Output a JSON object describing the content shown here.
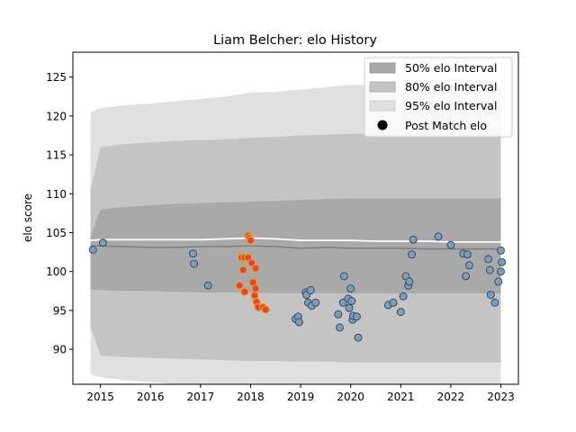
{
  "chart_data": {
    "type": "scatter",
    "title": "Liam Belcher: elo History",
    "xlabel": "",
    "ylabel": "elo score",
    "xlim": [
      2014.45,
      2023.35
    ],
    "ylim": [
      85.5,
      128.2
    ],
    "x_ticks": [
      2015,
      2016,
      2017,
      2018,
      2019,
      2020,
      2021,
      2022,
      2023
    ],
    "y_ticks": [
      90,
      95,
      100,
      105,
      110,
      115,
      120,
      125
    ],
    "grid": false,
    "legend": {
      "position": "top-right",
      "entries": [
        "50% elo Interval",
        "80% elo Interval",
        "95% elo Interval",
        "Post Match elo"
      ]
    },
    "colors": {
      "band50": "#a9a9a9",
      "band80": "#c4c4c4",
      "band95": "#e0e0e0",
      "median_line": "#808080",
      "mean_line": "#ffffff",
      "point_fill": "#7a9ebb",
      "point_edge": "#3b4d5c",
      "highlight_fill": "#e8413a",
      "highlight_edge": "#e8a317"
    },
    "bands": {
      "x": [
        2014.8,
        2015.0,
        2015.5,
        2016.0,
        2016.5,
        2017.0,
        2017.5,
        2018.0,
        2018.5,
        2019.0,
        2019.5,
        2020.0,
        2020.5,
        2021.0,
        2021.5,
        2022.0,
        2022.5,
        2023.0
      ],
      "p95_upper": [
        120.5,
        121.0,
        121.4,
        121.6,
        121.9,
        122.2,
        122.5,
        123.0,
        123.1,
        123.4,
        123.7,
        124.0,
        124.0,
        123.9,
        124.0,
        124.0,
        124.0,
        124.0
      ],
      "p95_lower": [
        86.8,
        86.4,
        86.0,
        85.8,
        85.5,
        85.4,
        85.2,
        85.0,
        84.9,
        84.8,
        84.7,
        84.6,
        84.6,
        84.5,
        84.6,
        84.6,
        84.6,
        84.6
      ],
      "p80_upper": [
        110.5,
        116.0,
        116.4,
        116.6,
        116.8,
        116.9,
        117.0,
        117.2,
        117.3,
        117.5,
        117.6,
        117.7,
        117.7,
        117.7,
        117.7,
        117.7,
        117.7,
        117.7
      ],
      "p80_lower": [
        93.0,
        89.2,
        89.0,
        88.9,
        88.8,
        88.7,
        88.6,
        88.5,
        88.5,
        88.4,
        88.4,
        88.3,
        88.3,
        88.3,
        88.3,
        88.3,
        88.3,
        88.3
      ],
      "p50_upper": [
        104.5,
        108.0,
        108.3,
        108.5,
        108.7,
        108.8,
        108.9,
        109.0,
        109.1,
        109.2,
        109.3,
        109.4,
        109.4,
        109.4,
        109.4,
        109.4,
        109.4,
        109.4
      ],
      "p50_lower": [
        97.7,
        97.6,
        97.5,
        97.5,
        97.4,
        97.3,
        97.3,
        97.3,
        97.2,
        97.2,
        97.2,
        97.2,
        97.2,
        97.2,
        97.2,
        97.2,
        97.2,
        97.2
      ],
      "median": [
        103.3,
        103.3,
        103.2,
        103.1,
        103.1,
        103.2,
        103.2,
        103.3,
        103.2,
        103.0,
        103.1,
        103.0,
        103.0,
        103.0,
        102.9,
        102.9,
        102.9,
        102.9
      ],
      "mean": [
        104.0,
        104.1,
        104.1,
        104.1,
        104.1,
        104.1,
        104.2,
        104.3,
        104.2,
        104.0,
        104.0,
        104.0,
        103.9,
        103.9,
        103.9,
        103.8,
        103.8,
        103.8
      ]
    },
    "points": [
      {
        "x": 2014.85,
        "y": 102.8
      },
      {
        "x": 2015.05,
        "y": 103.7
      },
      {
        "x": 2016.85,
        "y": 102.3
      },
      {
        "x": 2016.87,
        "y": 101.0
      },
      {
        "x": 2017.15,
        "y": 98.2
      },
      {
        "x": 2018.9,
        "y": 93.9
      },
      {
        "x": 2018.95,
        "y": 94.2
      },
      {
        "x": 2018.97,
        "y": 93.5
      },
      {
        "x": 2019.1,
        "y": 97.3
      },
      {
        "x": 2019.12,
        "y": 97.0
      },
      {
        "x": 2019.2,
        "y": 97.6
      },
      {
        "x": 2019.15,
        "y": 96.0
      },
      {
        "x": 2019.22,
        "y": 95.6
      },
      {
        "x": 2019.3,
        "y": 96.0
      },
      {
        "x": 2019.75,
        "y": 94.5
      },
      {
        "x": 2019.78,
        "y": 92.8
      },
      {
        "x": 2019.85,
        "y": 96.0
      },
      {
        "x": 2019.87,
        "y": 99.4
      },
      {
        "x": 2019.95,
        "y": 96.5
      },
      {
        "x": 2019.97,
        "y": 95.3
      },
      {
        "x": 2020.0,
        "y": 97.8
      },
      {
        "x": 2020.02,
        "y": 96.2
      },
      {
        "x": 2020.04,
        "y": 93.8
      },
      {
        "x": 2020.05,
        "y": 94.3
      },
      {
        "x": 2020.12,
        "y": 94.2
      },
      {
        "x": 2020.15,
        "y": 91.5
      },
      {
        "x": 2020.75,
        "y": 95.7
      },
      {
        "x": 2020.85,
        "y": 96.0
      },
      {
        "x": 2021.0,
        "y": 94.8
      },
      {
        "x": 2021.05,
        "y": 96.8
      },
      {
        "x": 2021.1,
        "y": 99.4
      },
      {
        "x": 2021.15,
        "y": 98.2
      },
      {
        "x": 2021.17,
        "y": 98.7
      },
      {
        "x": 2021.22,
        "y": 102.2
      },
      {
        "x": 2021.25,
        "y": 104.1
      },
      {
        "x": 2021.75,
        "y": 104.5
      },
      {
        "x": 2022.0,
        "y": 103.4
      },
      {
        "x": 2022.25,
        "y": 102.3
      },
      {
        "x": 2022.3,
        "y": 99.4
      },
      {
        "x": 2022.33,
        "y": 102.2
      },
      {
        "x": 2022.37,
        "y": 100.8
      },
      {
        "x": 2022.75,
        "y": 101.6
      },
      {
        "x": 2022.78,
        "y": 100.2
      },
      {
        "x": 2022.8,
        "y": 97.0
      },
      {
        "x": 2022.88,
        "y": 96.0
      },
      {
        "x": 2022.95,
        "y": 98.7
      },
      {
        "x": 2023.0,
        "y": 102.7
      },
      {
        "x": 2023.0,
        "y": 100.0
      },
      {
        "x": 2023.02,
        "y": 101.2
      }
    ],
    "highlight_points": [
      {
        "x": 2017.95,
        "y": 104.6
      },
      {
        "x": 2017.98,
        "y": 104.3
      },
      {
        "x": 2018.0,
        "y": 104.0
      },
      {
        "x": 2017.82,
        "y": 101.8
      },
      {
        "x": 2017.88,
        "y": 101.8
      },
      {
        "x": 2017.95,
        "y": 101.8
      },
      {
        "x": 2018.02,
        "y": 101.1
      },
      {
        "x": 2018.1,
        "y": 100.4
      },
      {
        "x": 2017.85,
        "y": 100.2
      },
      {
        "x": 2017.78,
        "y": 98.2
      },
      {
        "x": 2017.88,
        "y": 97.4
      },
      {
        "x": 2018.05,
        "y": 98.6
      },
      {
        "x": 2018.1,
        "y": 97.8
      },
      {
        "x": 2018.08,
        "y": 96.9
      },
      {
        "x": 2018.12,
        "y": 96.1
      },
      {
        "x": 2018.15,
        "y": 95.4
      },
      {
        "x": 2018.25,
        "y": 95.4
      },
      {
        "x": 2018.3,
        "y": 95.1
      }
    ]
  }
}
